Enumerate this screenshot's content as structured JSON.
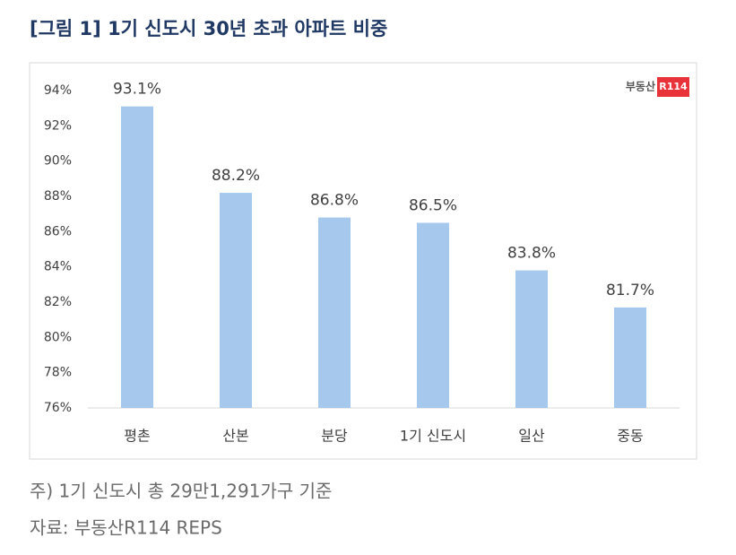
{
  "chart_data": {
    "type": "bar",
    "title": "[그림 1] 1기 신도시 30년 초과 아파트 비중",
    "categories": [
      "평촌",
      "산본",
      "분당",
      "1기 신도시",
      "일산",
      "중동"
    ],
    "values": [
      93.1,
      88.2,
      86.8,
      86.5,
      83.8,
      81.7
    ],
    "value_labels": [
      "93.1%",
      "88.2%",
      "86.8%",
      "86.5%",
      "83.8%",
      "81.7%"
    ],
    "color": "#a5c8ec",
    "ylim": [
      76,
      94
    ],
    "yticks": [
      {
        "value": 76,
        "label": "76%"
      },
      {
        "value": 78,
        "label": "78%"
      },
      {
        "value": 80,
        "label": "80%"
      },
      {
        "value": 82,
        "label": "82%"
      },
      {
        "value": 84,
        "label": "84%"
      },
      {
        "value": 86,
        "label": "86%"
      },
      {
        "value": 88,
        "label": "88%"
      },
      {
        "value": 90,
        "label": "90%"
      },
      {
        "value": 92,
        "label": "92%"
      },
      {
        "value": 94,
        "label": "94%"
      }
    ],
    "grid": false
  },
  "logo": {
    "text": "부동산",
    "badge": "R114"
  },
  "notes": [
    "주) 1기 신도시 총 29만1,291가구 기준",
    "자료: 부동산R114 REPS"
  ]
}
